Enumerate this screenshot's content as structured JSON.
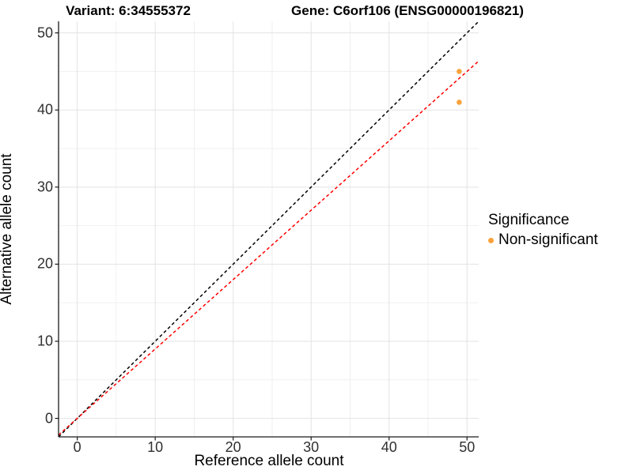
{
  "chart_data": {
    "type": "scatter",
    "titles": {
      "left": "Variant: 6:34555372",
      "right": "Gene: C6orf106 (ENSG00000196821)"
    },
    "xlabel": "Reference allele count",
    "ylabel": "Alternative allele count",
    "xlim": [
      -2.4,
      51.5
    ],
    "ylim": [
      -2.4,
      51.5
    ],
    "x_ticks": [
      0,
      10,
      20,
      30,
      40,
      50
    ],
    "y_ticks": [
      0,
      10,
      20,
      30,
      40,
      50
    ],
    "minor_ticks": [
      5,
      15,
      25,
      35,
      45
    ],
    "grid": {
      "major_color": "#e3e3e3",
      "minor_color": "#f0f0f0",
      "background": "#ffffff"
    },
    "axis_color": "#1a1a1a",
    "tick_label_color": "#303030",
    "points": [
      {
        "x": 49,
        "y": 45,
        "series": "Non-significant"
      },
      {
        "x": 49,
        "y": 41,
        "series": "Non-significant"
      }
    ],
    "point_color": "#f9a23b",
    "point_radius": 3.3,
    "lines": [
      {
        "name": "identity-line",
        "slope": 1,
        "intercept": 0,
        "color": "#000000",
        "dash": "4 3.2"
      },
      {
        "name": "ratio-line",
        "slope": 0.9,
        "intercept": 0,
        "color": "#ff0000",
        "dash": "4 3.2"
      }
    ],
    "legend": {
      "title": "Significance",
      "items": [
        {
          "label": "Non-significant",
          "color": "#f9a23b"
        }
      ]
    }
  }
}
